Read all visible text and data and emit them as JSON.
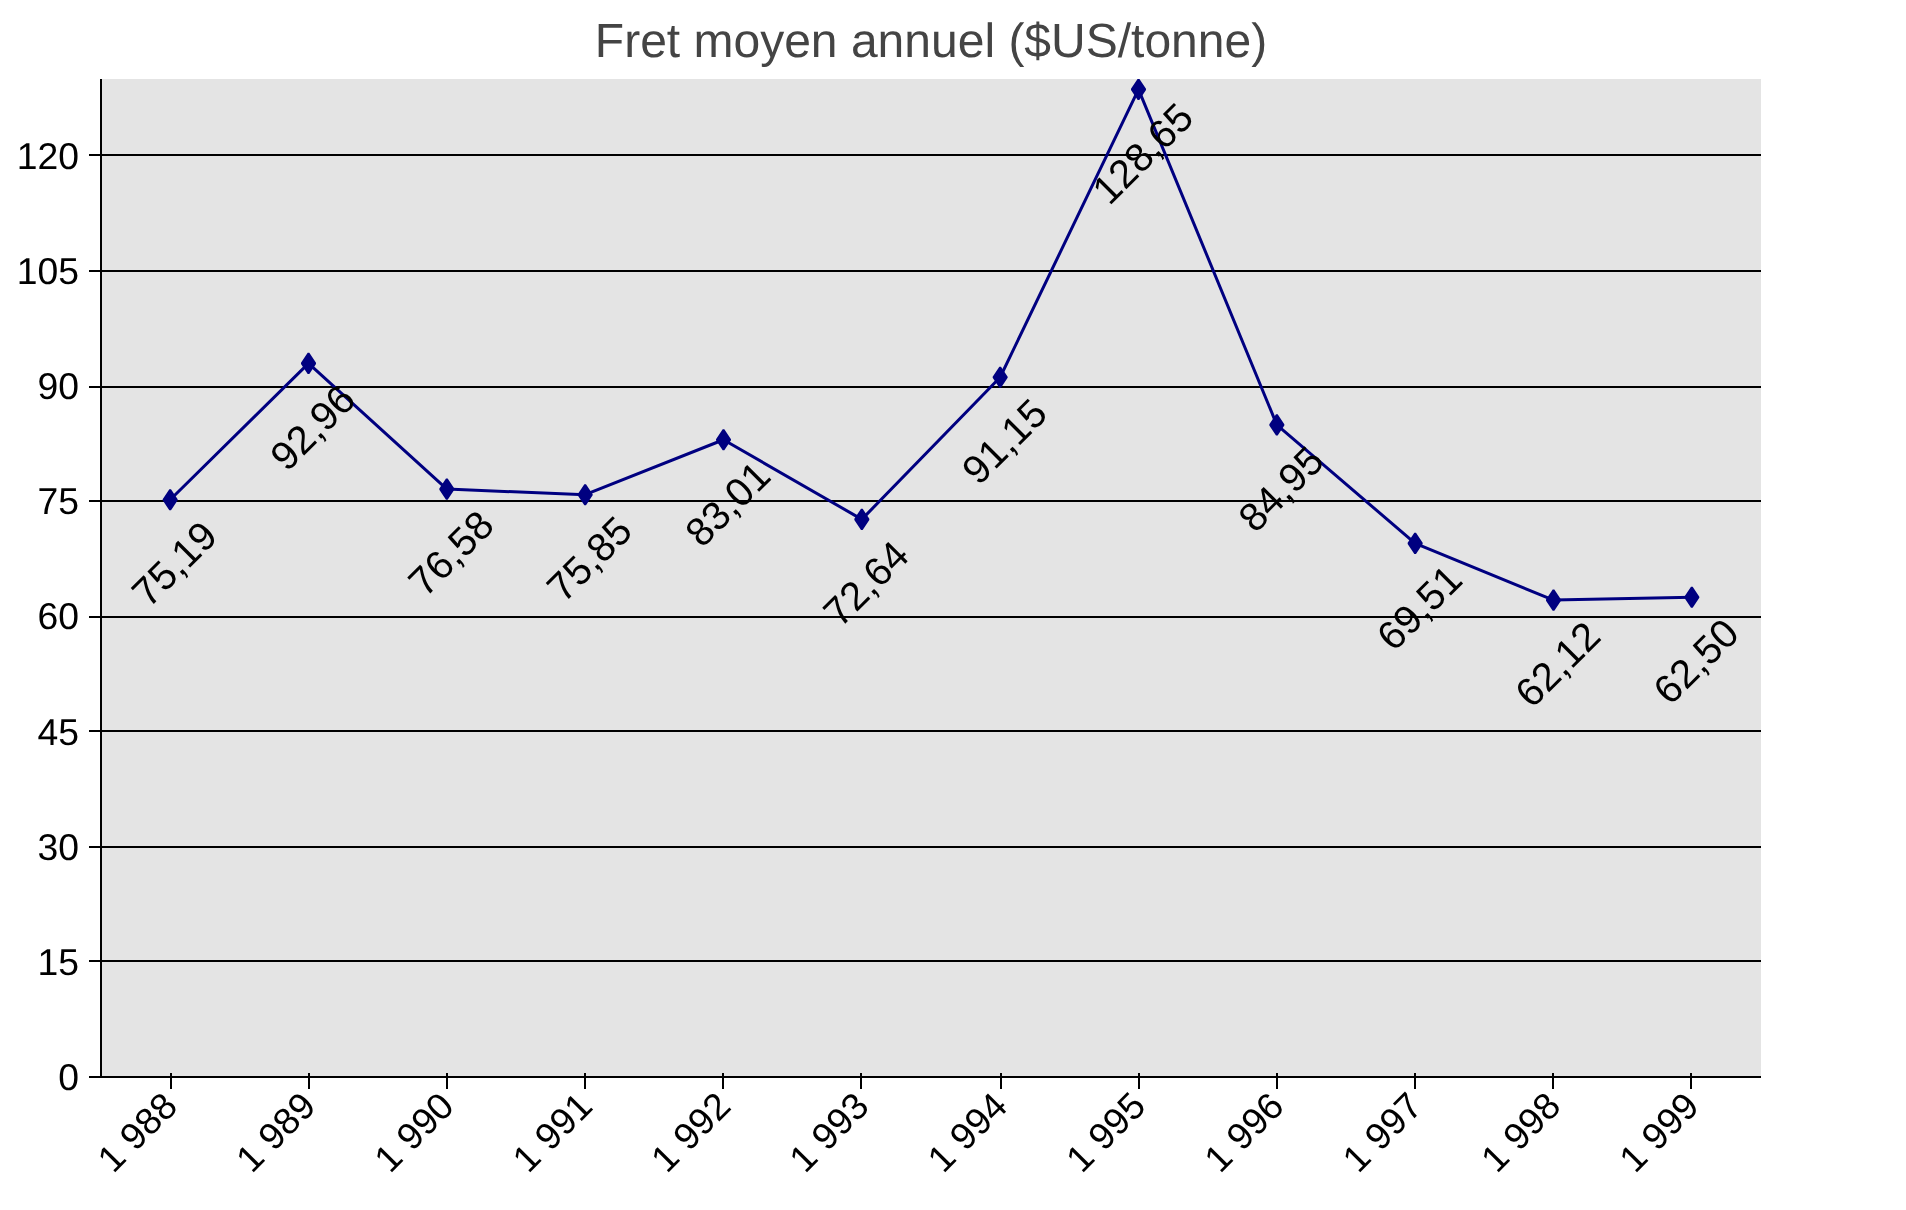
{
  "chart_data": {
    "type": "line",
    "title": "Fret moyen annuel ($US/tonne)",
    "categories": [
      "1 988",
      "1 989",
      "1 990",
      "1 991",
      "1 992",
      "1 993",
      "1 994",
      "1 995",
      "1 996",
      "1 997",
      "1 998",
      "1 999"
    ],
    "series": [
      {
        "color": "#000080",
        "values": [
          75.19,
          92.96,
          76.58,
          75.85,
          83.01,
          72.64,
          91.15,
          128.65,
          84.95,
          69.51,
          62.12,
          62.5
        ],
        "value_labels": [
          "75,19",
          "92,96",
          "76,58",
          "75,85",
          "83,01",
          "72,64",
          "91,15",
          "128,65",
          "84,95",
          "69,51",
          "62,12",
          "62,50"
        ]
      }
    ],
    "ylim": [
      0,
      130
    ],
    "yticks": [
      0,
      15,
      30,
      45,
      60,
      75,
      90,
      105,
      120
    ],
    "grid": "y",
    "marker": "diamond",
    "line_style": "solid"
  }
}
